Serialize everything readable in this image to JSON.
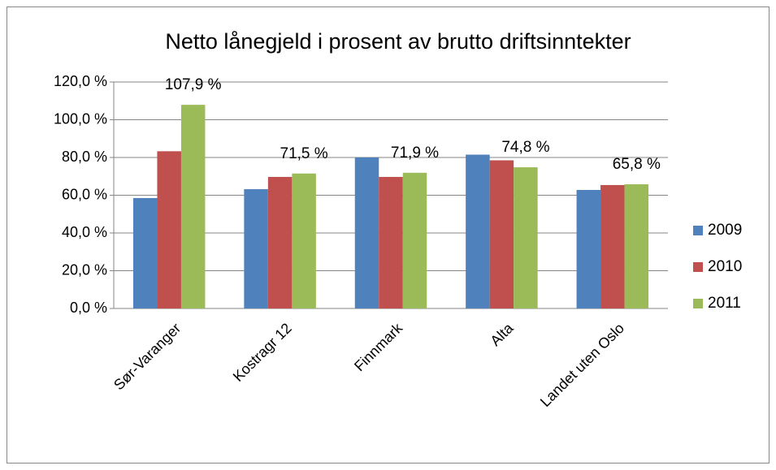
{
  "chart_data": {
    "type": "bar",
    "title": "Netto lånegjeld i prosent av brutto driftsinntekter",
    "categories": [
      "Sør-Varanger",
      "Kostragr 12",
      "Finnmark",
      "Alta",
      "Landet uten Oslo"
    ],
    "series": [
      {
        "name": "2009",
        "color": "#4f81bd",
        "values": [
          58.5,
          63.2,
          80.0,
          81.5,
          62.8
        ]
      },
      {
        "name": "2010",
        "color": "#c0504d",
        "values": [
          83.3,
          69.7,
          69.7,
          78.5,
          65.4
        ]
      },
      {
        "name": "2011",
        "color": "#9bbb59",
        "values": [
          107.9,
          71.5,
          71.9,
          74.8,
          65.8
        ],
        "value_labels": [
          "107,9 %",
          "71,5 %",
          "71,9 %",
          "74,8 %",
          "65,8 %"
        ]
      }
    ],
    "ylim": [
      0,
      120
    ],
    "yticks": [
      {
        "value": 0,
        "label": "0,0 %"
      },
      {
        "value": 20,
        "label": "20,0 %"
      },
      {
        "value": 40,
        "label": "40,0 %"
      },
      {
        "value": 60,
        "label": "60,0 %"
      },
      {
        "value": 80,
        "label": "80,0 %"
      },
      {
        "value": 100,
        "label": "100,0 %"
      },
      {
        "value": 120,
        "label": "120,0 %"
      }
    ],
    "grid": true,
    "legend": "right"
  }
}
